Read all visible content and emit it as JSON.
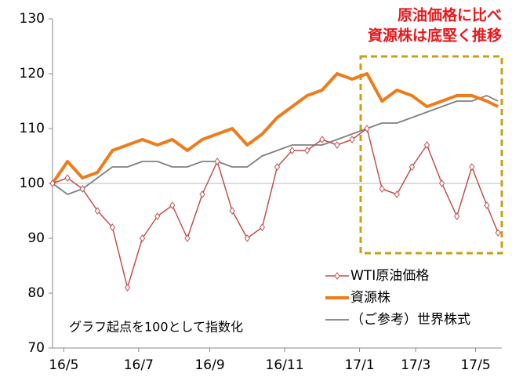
{
  "chart_data": {
    "type": "line",
    "annotation": [
      "原油価格に比べ",
      "資源株は底堅く推移"
    ],
    "note": "グラフ起点を100として指数化",
    "x": [
      0,
      4,
      8,
      12,
      16,
      20,
      24,
      28,
      32,
      36,
      40,
      44,
      48,
      52,
      56,
      60,
      64,
      68,
      72,
      76,
      80,
      84,
      88,
      92,
      96,
      100,
      104,
      108,
      112,
      116,
      119
    ],
    "xlim": [
      0,
      120
    ],
    "xticks": [
      {
        "value": 3,
        "label": "16/5"
      },
      {
        "value": 23,
        "label": "16/7"
      },
      {
        "value": 42,
        "label": "16/9"
      },
      {
        "value": 62,
        "label": "16/11"
      },
      {
        "value": 82,
        "label": "17/1"
      },
      {
        "value": 97,
        "label": "17/3"
      },
      {
        "value": 113,
        "label": "17/5"
      }
    ],
    "ylim": [
      70,
      130
    ],
    "yticks": [
      70,
      80,
      90,
      100,
      110,
      120,
      130
    ],
    "series": [
      {
        "name": "WTI原油価格",
        "color": "#c0504d",
        "values": [
          100,
          101,
          99,
          95,
          92,
          81,
          90,
          94,
          96,
          90,
          98,
          104,
          95,
          90,
          92,
          103,
          106,
          106,
          108,
          107,
          108,
          110,
          99,
          98,
          103,
          107,
          100,
          94,
          103,
          96,
          91
        ]
      },
      {
        "name": "資源株",
        "color": "#ee7c1a",
        "values": [
          100,
          104,
          101,
          102,
          106,
          107,
          108,
          107,
          108,
          106,
          108,
          109,
          110,
          107,
          109,
          112,
          114,
          116,
          117,
          120,
          119,
          120,
          115,
          117,
          116,
          114,
          115,
          116,
          116,
          115,
          114
        ]
      },
      {
        "name": "（ご参考）世界株式",
        "color": "#808080",
        "values": [
          100,
          98,
          99,
          101,
          103,
          103,
          104,
          104,
          103,
          103,
          104,
          104,
          103,
          103,
          105,
          106,
          107,
          107,
          107,
          108,
          109,
          110,
          111,
          111,
          112,
          113,
          114,
          115,
          115,
          116,
          115
        ]
      }
    ]
  }
}
